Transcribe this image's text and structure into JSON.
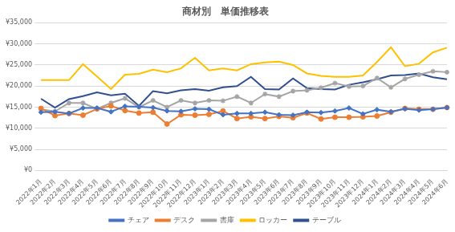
{
  "chart_data": {
    "type": "line",
    "title": "商材別　単価推移表",
    "categories": [
      "2022年1月",
      "2022年2月",
      "2022年3月",
      "2022年4月",
      "2022年5月",
      "2022年6月",
      "2022年7月",
      "2022年8月",
      "2022年9月",
      "2022年10月",
      "2022年11月",
      "2022年12月",
      "2023年1月",
      "2023年2月",
      "2023年3月",
      "2023年4月",
      "2023年5月",
      "2023年6月",
      "2023年7月",
      "2023年8月",
      "2023年9月",
      "2023年10月",
      "2023年11月",
      "2023年12月",
      "2024年1月",
      "2024年2月",
      "2024年3月",
      "2024年4月",
      "2024年5月",
      "2024年6月"
    ],
    "series": [
      {
        "name": "チェア",
        "color": "#4472c4",
        "marker": "diamond",
        "values": [
          13800,
          13900,
          13500,
          14800,
          14800,
          13900,
          15200,
          15100,
          14900,
          14100,
          14000,
          14600,
          14500,
          13200,
          13500,
          13500,
          13800,
          13200,
          13100,
          13800,
          13700,
          14100,
          14800,
          13400,
          14400,
          13900,
          14600,
          14300,
          14500,
          14900
        ]
      },
      {
        "name": "デスク",
        "color": "#ed7d31",
        "marker": "circle",
        "values": [
          14700,
          13000,
          13500,
          13100,
          14600,
          15300,
          14200,
          13600,
          13800,
          11000,
          13200,
          13100,
          13300,
          14100,
          12300,
          12700,
          12300,
          12800,
          12500,
          13600,
          12200,
          12600,
          12600,
          12700,
          12900,
          13800,
          14700,
          14500,
          14500,
          14900
        ]
      },
      {
        "name": "書庫",
        "color": "#a5a5a5",
        "marker": "star",
        "values": [
          14500,
          14000,
          16000,
          16000,
          14600,
          16000,
          17100,
          15000,
          16600,
          15000,
          16600,
          16000,
          16600,
          16500,
          17500,
          16000,
          18100,
          17500,
          18800,
          19000,
          19600,
          20700,
          19900,
          20000,
          21900,
          19700,
          21700,
          22700,
          23500,
          23300
        ]
      },
      {
        "name": "ロッカー",
        "color": "#ffc000",
        "marker": "none",
        "values": [
          21400,
          21400,
          21400,
          25200,
          22300,
          19300,
          22700,
          22900,
          23900,
          23300,
          24200,
          26700,
          23700,
          24200,
          23700,
          25200,
          25600,
          25800,
          25000,
          23000,
          22400,
          22200,
          22200,
          22500,
          25700,
          29200,
          24700,
          25300,
          28000,
          29100
        ]
      },
      {
        "name": "テーブル",
        "color": "#2f4f8f",
        "marker": "none",
        "values": [
          17000,
          14900,
          16900,
          17600,
          18500,
          17800,
          18200,
          15300,
          18800,
          18300,
          19000,
          19300,
          18900,
          19700,
          20000,
          22200,
          19300,
          19200,
          21800,
          19500,
          19300,
          19200,
          20300,
          20900,
          21600,
          22500,
          22600,
          23000,
          22100,
          21600
        ]
      }
    ],
    "ylim": [
      0,
      35000
    ],
    "yticks": [
      {
        "value": 0,
        "label": "¥0"
      },
      {
        "value": 5000,
        "label": "¥5,000"
      },
      {
        "value": 10000,
        "label": "¥10,000"
      },
      {
        "value": 15000,
        "label": "¥15,000"
      },
      {
        "value": 20000,
        "label": "¥20,000"
      },
      {
        "value": 25000,
        "label": "¥25,000"
      },
      {
        "value": 30000,
        "label": "¥30,000"
      },
      {
        "value": 35000,
        "label": "¥35,000"
      }
    ],
    "grid": true,
    "legend": "bottom"
  }
}
